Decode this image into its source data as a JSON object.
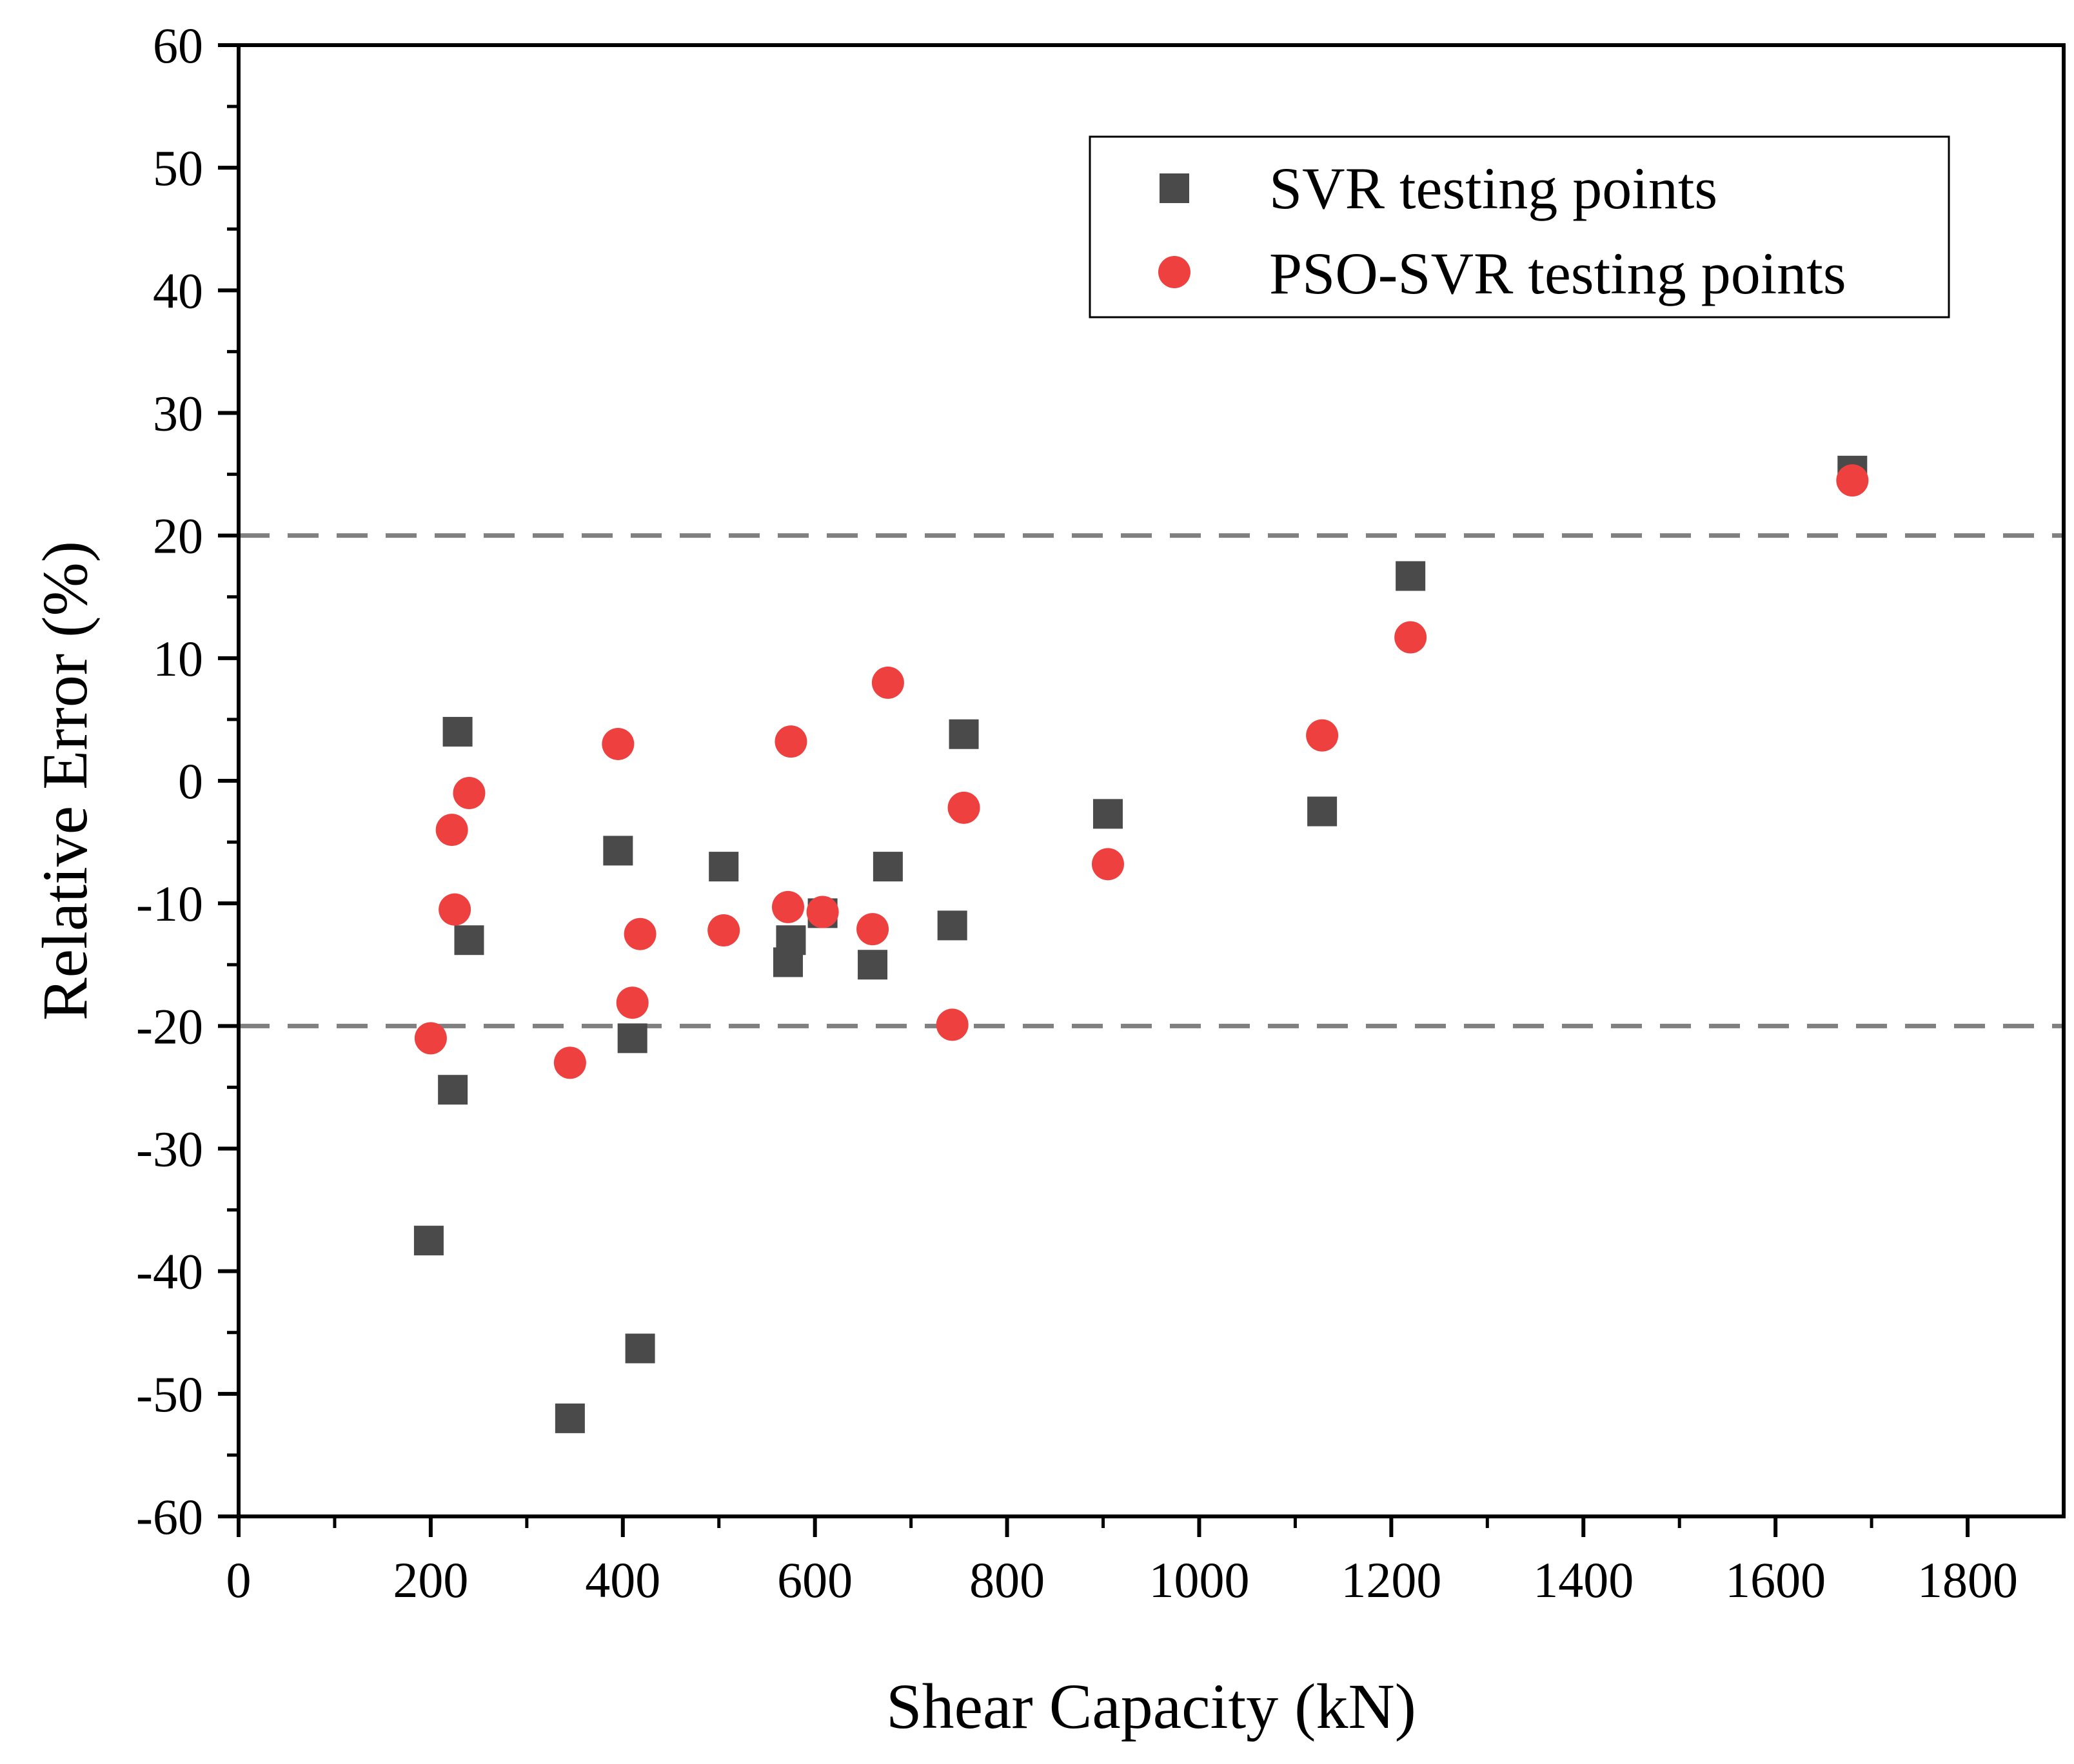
{
  "chart_data": {
    "type": "scatter",
    "title": "",
    "xlabel": "Shear Capacity (kN)",
    "ylabel": "Relative Error (%)",
    "xlim": [
      0,
      1900
    ],
    "ylim": [
      -60,
      60
    ],
    "x_ticks": [
      0,
      200,
      400,
      600,
      800,
      1000,
      1200,
      1400,
      1600,
      1800
    ],
    "y_ticks": [
      -60,
      -50,
      -40,
      -30,
      -20,
      -10,
      0,
      10,
      20,
      30,
      40,
      50,
      60
    ],
    "reference_lines": [
      {
        "y": 20,
        "style": "dashed",
        "color": "#808080"
      },
      {
        "y": -20,
        "style": "dashed",
        "color": "#808080"
      }
    ],
    "legend_position": "top-right",
    "series": [
      {
        "name": "SVR testing points",
        "marker": "square",
        "color": "#4a4a4a",
        "points": [
          {
            "x": 198,
            "y": -37.5
          },
          {
            "x": 223,
            "y": -25.2
          },
          {
            "x": 228,
            "y": 4.0
          },
          {
            "x": 240,
            "y": -13.0
          },
          {
            "x": 345,
            "y": -52.0
          },
          {
            "x": 395,
            "y": -5.7
          },
          {
            "x": 410,
            "y": -21.0
          },
          {
            "x": 418,
            "y": -46.3
          },
          {
            "x": 505,
            "y": -7.0
          },
          {
            "x": 572,
            "y": -14.8
          },
          {
            "x": 575,
            "y": -13.0
          },
          {
            "x": 608,
            "y": -10.8
          },
          {
            "x": 660,
            "y": -15.0
          },
          {
            "x": 676,
            "y": -7.0
          },
          {
            "x": 743,
            "y": -11.8
          },
          {
            "x": 755,
            "y": 3.8
          },
          {
            "x": 905,
            "y": -2.7
          },
          {
            "x": 1128,
            "y": -2.5
          },
          {
            "x": 1220,
            "y": 16.7
          },
          {
            "x": 1680,
            "y": 25.3
          }
        ]
      },
      {
        "name": "PSO-SVR testing points",
        "marker": "circle",
        "color": "#ef4040",
        "points": [
          {
            "x": 200,
            "y": -21.0
          },
          {
            "x": 222,
            "y": -4.0
          },
          {
            "x": 225,
            "y": -10.5
          },
          {
            "x": 240,
            "y": -1.0
          },
          {
            "x": 345,
            "y": -23.0
          },
          {
            "x": 395,
            "y": 3.0
          },
          {
            "x": 410,
            "y": -18.1
          },
          {
            "x": 418,
            "y": -12.5
          },
          {
            "x": 505,
            "y": -12.2
          },
          {
            "x": 572,
            "y": -10.3
          },
          {
            "x": 575,
            "y": 3.2
          },
          {
            "x": 608,
            "y": -10.7
          },
          {
            "x": 660,
            "y": -12.1
          },
          {
            "x": 676,
            "y": 8.0
          },
          {
            "x": 743,
            "y": -19.9
          },
          {
            "x": 755,
            "y": -2.2
          },
          {
            "x": 905,
            "y": -6.8
          },
          {
            "x": 1128,
            "y": 3.7
          },
          {
            "x": 1220,
            "y": 11.7
          },
          {
            "x": 1680,
            "y": 24.5
          }
        ]
      }
    ]
  }
}
